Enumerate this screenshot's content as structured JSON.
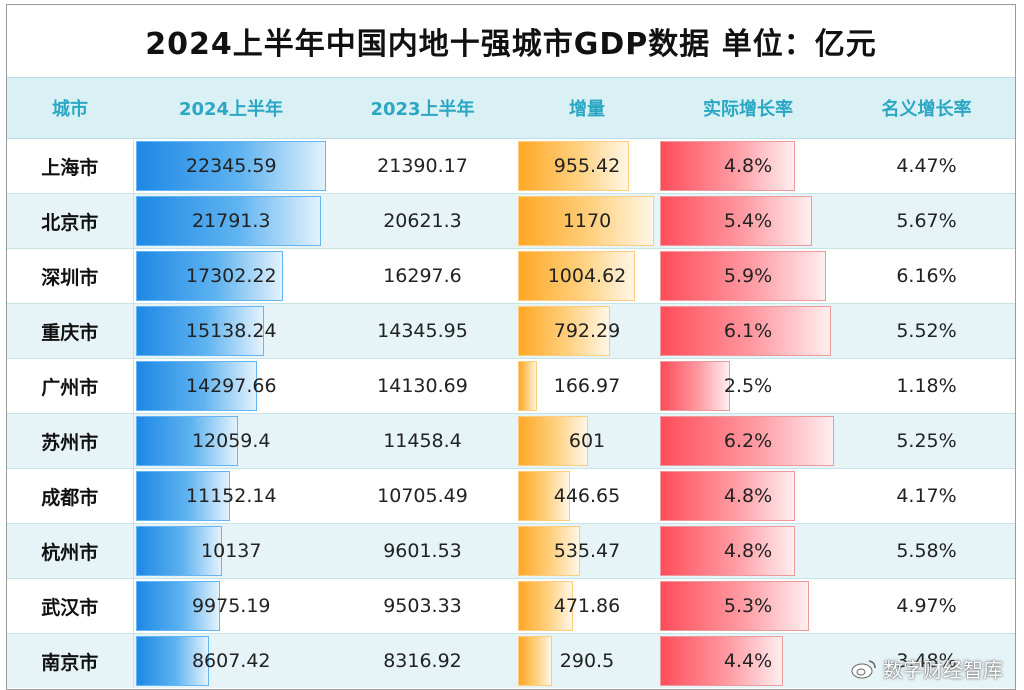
{
  "title": "2024上半年中国内地十强城市GDP数据   单位：亿元",
  "watermark": "数字财经智库",
  "columns": [
    "城市",
    "2024上半年",
    "2023上半年",
    "增量",
    "实际增长率",
    "名义增长率"
  ],
  "colors": {
    "header_bg": "#d9f1f4",
    "header_text": "#2ba7c4",
    "blue_bar": "#1e88e5",
    "orange_bar": "#ffa726",
    "red_bar": "#ff4d5a"
  },
  "chart_data": {
    "type": "table",
    "title": "2024上半年中国内地十强城市GDP数据   单位：亿元",
    "columns": [
      "城市",
      "2024上半年",
      "2023上半年",
      "增量",
      "实际增长率",
      "名义增长率"
    ],
    "rows": [
      {
        "city": "上海市",
        "gdp_2024": "22345.59",
        "gdp_2023": "21390.17",
        "increment": "955.42",
        "real_growth": "4.8%",
        "nominal_growth": "4.47%",
        "gdp_2024_num": 22345.59,
        "increment_num": 955.42,
        "real_growth_num": 4.8
      },
      {
        "city": "北京市",
        "gdp_2024": "21791.3",
        "gdp_2023": "20621.3",
        "increment": "1170",
        "real_growth": "5.4%",
        "nominal_growth": "5.67%",
        "gdp_2024_num": 21791.3,
        "increment_num": 1170,
        "real_growth_num": 5.4
      },
      {
        "city": "深圳市",
        "gdp_2024": "17302.22",
        "gdp_2023": "16297.6",
        "increment": "1004.62",
        "real_growth": "5.9%",
        "nominal_growth": "6.16%",
        "gdp_2024_num": 17302.22,
        "increment_num": 1004.62,
        "real_growth_num": 5.9
      },
      {
        "city": "重庆市",
        "gdp_2024": "15138.24",
        "gdp_2023": "14345.95",
        "increment": "792.29",
        "real_growth": "6.1%",
        "nominal_growth": "5.52%",
        "gdp_2024_num": 15138.24,
        "increment_num": 792.29,
        "real_growth_num": 6.1
      },
      {
        "city": "广州市",
        "gdp_2024": "14297.66",
        "gdp_2023": "14130.69",
        "increment": "166.97",
        "real_growth": "2.5%",
        "nominal_growth": "1.18%",
        "gdp_2024_num": 14297.66,
        "increment_num": 166.97,
        "real_growth_num": 2.5
      },
      {
        "city": "苏州市",
        "gdp_2024": "12059.4",
        "gdp_2023": "11458.4",
        "increment": "601",
        "real_growth": "6.2%",
        "nominal_growth": "5.25%",
        "gdp_2024_num": 12059.4,
        "increment_num": 601,
        "real_growth_num": 6.2
      },
      {
        "city": "成都市",
        "gdp_2024": "11152.14",
        "gdp_2023": "10705.49",
        "increment": "446.65",
        "real_growth": "4.8%",
        "nominal_growth": "4.17%",
        "gdp_2024_num": 11152.14,
        "increment_num": 446.65,
        "real_growth_num": 4.8
      },
      {
        "city": "杭州市",
        "gdp_2024": "10137",
        "gdp_2023": "9601.53",
        "increment": "535.47",
        "real_growth": "4.8%",
        "nominal_growth": "5.58%",
        "gdp_2024_num": 10137,
        "increment_num": 535.47,
        "real_growth_num": 4.8
      },
      {
        "city": "武汉市",
        "gdp_2024": "9975.19",
        "gdp_2023": "9503.33",
        "increment": "471.86",
        "real_growth": "5.3%",
        "nominal_growth": "4.97%",
        "gdp_2024_num": 9975.19,
        "increment_num": 471.86,
        "real_growth_num": 5.3
      },
      {
        "city": "南京市",
        "gdp_2024": "8607.42",
        "gdp_2023": "8316.92",
        "increment": "290.5",
        "real_growth": "4.4%",
        "nominal_growth": "3.48%",
        "gdp_2024_num": 8607.42,
        "increment_num": 290.5,
        "real_growth_num": 4.4
      }
    ]
  }
}
